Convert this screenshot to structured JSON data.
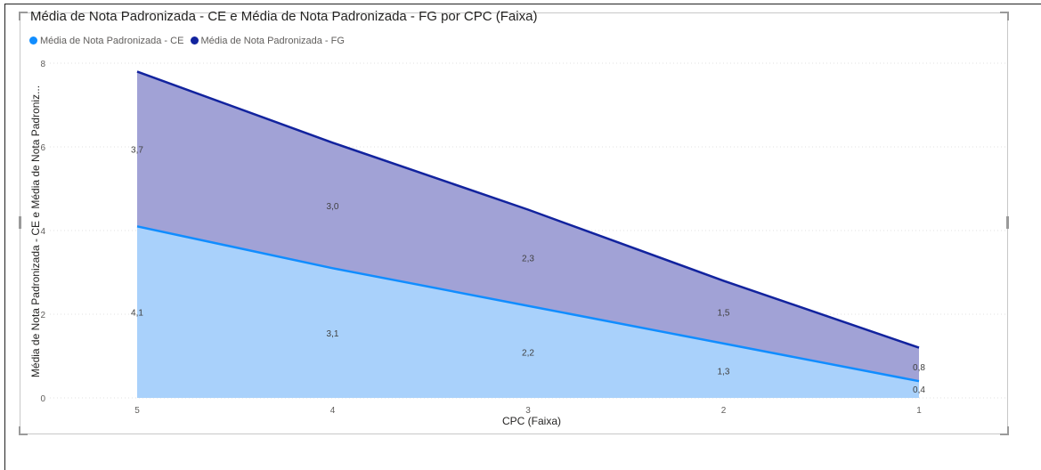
{
  "chart_data": {
    "type": "area",
    "title": "Média de Nota Padronizada - CE e Média de Nota Padronizada - FG por CPC (Faixa)",
    "xlabel": "CPC (Faixa)",
    "ylabel": "Média de Nota Padronizada - CE e Média de Nota Padroniz...",
    "categories": [
      "5",
      "4",
      "3",
      "2",
      "1"
    ],
    "ylim": [
      0,
      8
    ],
    "yticks": [
      "0",
      "2",
      "4",
      "6",
      "8"
    ],
    "stacked": true,
    "grid": true,
    "legend_position": "top-left",
    "series": [
      {
        "name": "Média de Nota Padronizada - CE",
        "values": [
          4.1,
          3.1,
          2.2,
          1.3,
          0.4
        ],
        "labels": [
          "4,1",
          "3,1",
          "2,2",
          "1,3",
          "0,4"
        ],
        "line_color": "#118dff",
        "fill_color": "#a9d1fb"
      },
      {
        "name": "Média de Nota Padronizada - FG",
        "values": [
          3.7,
          3.0,
          2.3,
          1.5,
          0.8
        ],
        "labels": [
          "3,7",
          "3,0",
          "2,3",
          "1,5",
          "0,8"
        ],
        "line_color": "#12239e",
        "fill_color": "#a1a2d6"
      }
    ]
  }
}
